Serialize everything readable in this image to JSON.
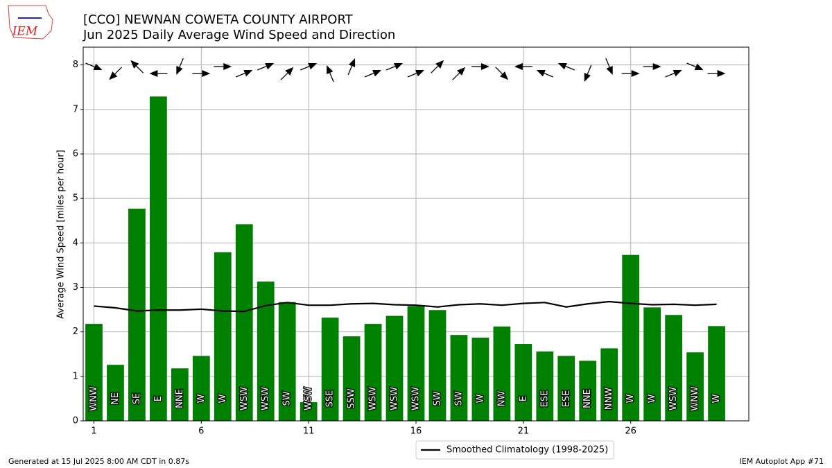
{
  "chart_data": {
    "type": "bar",
    "title": "[CCO] NEWNAN COWETA COUNTY AIRPORT",
    "subtitle": "Jun 2025 Daily Average Wind Speed and Direction",
    "y_label": "Average Wind Speed [miles per hour]",
    "logo": "IEM",
    "footer_left": "Generated at 15 Jul 2025 8:00 AM CDT in 0.87s",
    "footer_right": "IEM Autoplot App #71",
    "x": [
      1,
      2,
      3,
      4,
      5,
      6,
      7,
      8,
      9,
      10,
      11,
      12,
      13,
      14,
      15,
      16,
      17,
      18,
      19,
      20,
      21,
      22,
      23,
      24,
      25,
      26,
      27,
      28,
      29,
      30
    ],
    "series": [
      {
        "name": "Average Wind Speed",
        "color": "#008000",
        "values": [
          2.18,
          1.26,
          4.77,
          7.29,
          1.18,
          1.46,
          3.79,
          4.42,
          3.13,
          2.67,
          0.42,
          2.32,
          1.9,
          2.18,
          2.36,
          2.58,
          2.49,
          1.93,
          1.87,
          2.12,
          1.73,
          1.56,
          1.46,
          1.35,
          1.63,
          3.73,
          2.55,
          2.38,
          1.54,
          2.13
        ],
        "direction_labels": [
          "WNW",
          "NE",
          "SE",
          "E",
          "NNE",
          "W",
          "W",
          "WSW",
          "WSW",
          "SW",
          "WSW",
          "SSE",
          "SSW",
          "WSW",
          "WSW",
          "WSW",
          "SW",
          "SW",
          "W",
          "NW",
          "E",
          "ESE",
          "ESE",
          "NNE",
          "NNW",
          "W",
          "W",
          "WSW",
          "WNW",
          "W"
        ],
        "direction_degrees": [
          292.5,
          45,
          135,
          90,
          22.5,
          270,
          270,
          247.5,
          247.5,
          225,
          247.5,
          157.5,
          202.5,
          247.5,
          247.5,
          247.5,
          225,
          225,
          270,
          315,
          90,
          112.5,
          112.5,
          22.5,
          337.5,
          270,
          270,
          247.5,
          292.5,
          270
        ]
      },
      {
        "name": "Smoothed Climatology (1998-2025)",
        "type": "line",
        "color": "#000000",
        "values": [
          2.58,
          2.54,
          2.47,
          2.49,
          2.49,
          2.51,
          2.47,
          2.46,
          2.59,
          2.66,
          2.6,
          2.6,
          2.63,
          2.64,
          2.61,
          2.6,
          2.56,
          2.61,
          2.63,
          2.6,
          2.64,
          2.66,
          2.56,
          2.63,
          2.68,
          2.64,
          2.61,
          2.62,
          2.6,
          2.62
        ]
      }
    ],
    "xlim": [
      0.5,
      31.5
    ],
    "xticks": [
      1,
      6,
      11,
      16,
      21,
      26
    ],
    "ylim": [
      0,
      8.4
    ],
    "yticks": [
      0,
      1,
      2,
      3,
      4,
      5,
      6,
      7,
      8
    ],
    "grid": true,
    "legend": "lower center"
  }
}
